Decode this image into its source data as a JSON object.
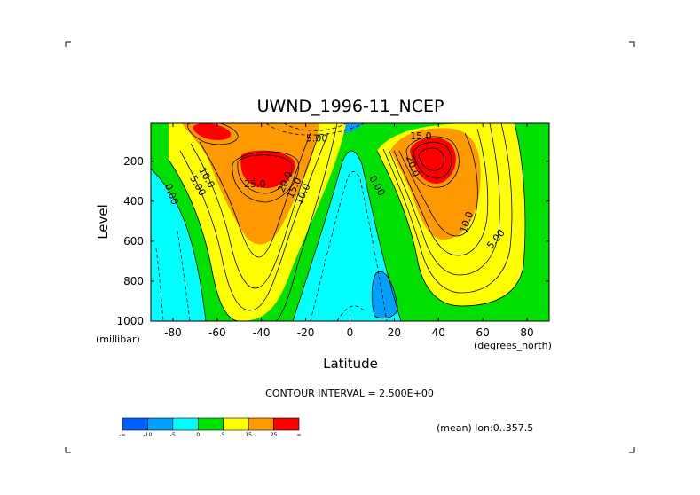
{
  "chart_data": {
    "type": "heatmap",
    "title": "UWND_1996-11_NCEP",
    "xlabel": "Latitude",
    "ylabel": "Level",
    "x_unit": "(degrees_north)",
    "y_unit": "(millibar)",
    "xlim": [
      -90,
      90
    ],
    "ylim": [
      1000,
      10
    ],
    "x_ticks": [
      -80,
      -60,
      -40,
      -20,
      0,
      20,
      40,
      60,
      80
    ],
    "x_tick_labels": [
      "-80",
      "-60",
      "-40",
      "-20",
      "0",
      "20",
      "40",
      "60",
      "80"
    ],
    "y_ticks": [
      200,
      400,
      600,
      800,
      1000
    ],
    "y_tick_labels": [
      "200",
      "400",
      "600",
      "800",
      "1000"
    ],
    "contour_interval_text": "CONTOUR INTERVAL = 2.500E+00",
    "footnote": "(mean) lon:0..357.5",
    "colorbar": {
      "bins": [
        {
          "min": -25,
          "max": -10,
          "color": "#0060ff"
        },
        {
          "min": -10,
          "max": -5,
          "color": "#00a0ff"
        },
        {
          "min": -5,
          "max": 0,
          "color": "#00ffff"
        },
        {
          "min": 0,
          "max": 5,
          "color": "#00e000"
        },
        {
          "min": 5,
          "max": 15,
          "color": "#ffff00"
        },
        {
          "min": 15,
          "max": 25,
          "color": "#ff9900"
        },
        {
          "min": 25,
          "max": 40,
          "color": "#ff0000"
        }
      ],
      "labels": [
        "-∞",
        "-10",
        "-5",
        "0",
        "5",
        "15",
        "25",
        "∞"
      ]
    },
    "contour_labels": [
      {
        "text": "10.0",
        "lat": -66,
        "lev": 290,
        "rot": 60
      },
      {
        "text": "5.00",
        "lat": -70,
        "lev": 330,
        "rot": 60
      },
      {
        "text": "0.00",
        "lat": -82,
        "lev": 370,
        "rot": 70
      },
      {
        "text": "25.0",
        "lat": -43,
        "lev": 330,
        "rot": 0
      },
      {
        "text": "20.0",
        "lat": -28,
        "lev": 310,
        "rot": -65
      },
      {
        "text": "15.0",
        "lat": -24,
        "lev": 340,
        "rot": -65
      },
      {
        "text": "10.0",
        "lat": -20,
        "lev": 370,
        "rot": -65
      },
      {
        "text": "5.00",
        "lat": -15,
        "lev": 100,
        "rot": 0
      },
      {
        "text": "0.00",
        "lat": 11,
        "lev": 330,
        "rot": 60
      },
      {
        "text": "15.0",
        "lat": 32,
        "lev": 90,
        "rot": 0
      },
      {
        "text": "20.0",
        "lat": 27,
        "lev": 230,
        "rot": 70
      },
      {
        "text": "10.0",
        "lat": 54,
        "lev": 510,
        "rot": -70
      },
      {
        "text": "5.00",
        "lat": 67,
        "lev": 600,
        "rot": -50
      }
    ]
  }
}
